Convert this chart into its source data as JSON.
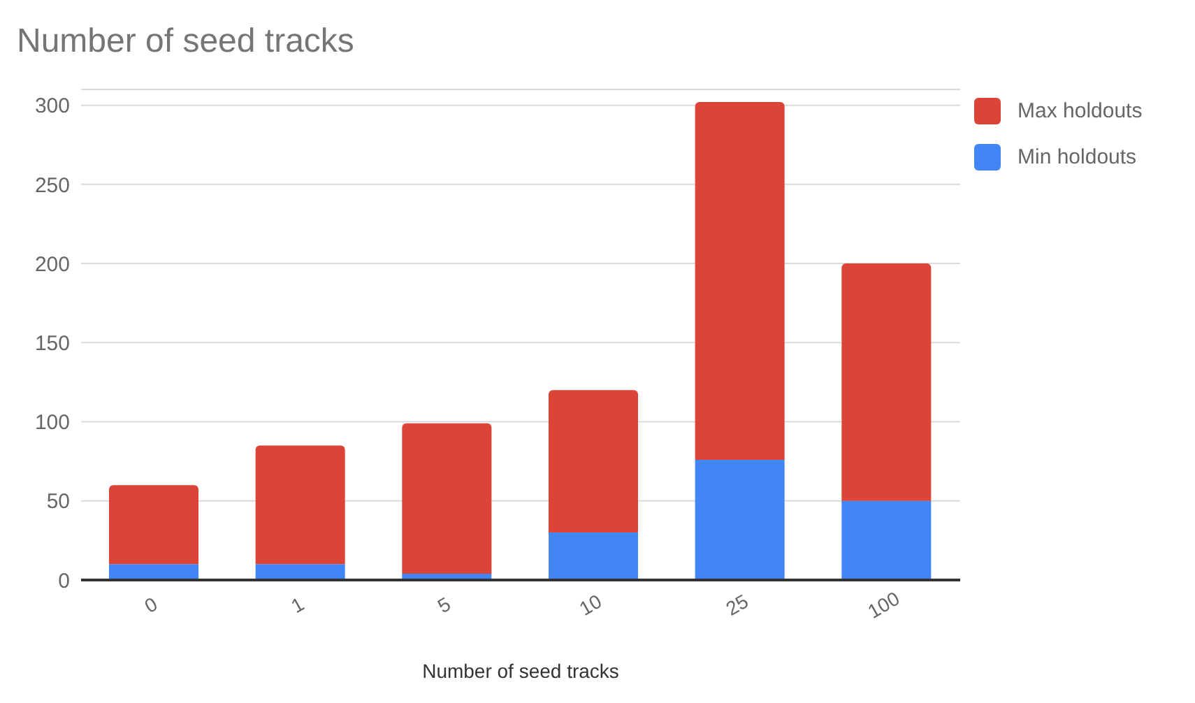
{
  "chart_data": {
    "type": "bar",
    "title": "Number of seed tracks",
    "xlabel": "Number of seed tracks",
    "categories": [
      "0",
      "1",
      "5",
      "10",
      "25",
      "100"
    ],
    "stacked": true,
    "series": [
      {
        "name": "Min holdouts",
        "color": "#4285f4",
        "values": [
          10,
          10,
          4,
          30,
          76,
          50
        ]
      },
      {
        "name": "Max holdouts",
        "color": "#db4437",
        "values": [
          50,
          75,
          95,
          90,
          226,
          150
        ]
      }
    ],
    "ylim": [
      0,
      310
    ],
    "yticks": [
      0,
      50,
      100,
      150,
      200,
      250,
      300
    ],
    "grid": "y",
    "legend": "top right"
  }
}
